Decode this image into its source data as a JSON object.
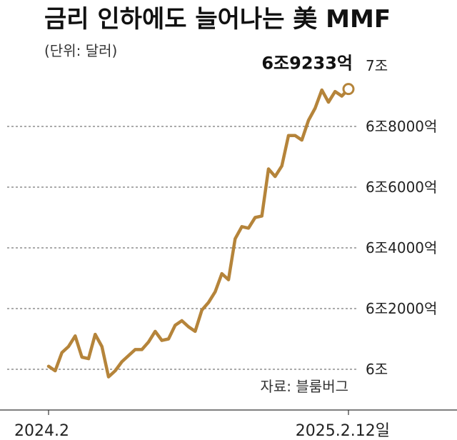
{
  "chart_data": {
    "type": "line",
    "title": "금리 인하에도 늘어나는 美 MMF",
    "unit": "(단위: 달러)",
    "source": "자료: 블룸버그",
    "peak_label": "6조9233억",
    "x_tick_labels": [
      "2024.2",
      "2025.2.12일"
    ],
    "y_tick_labels": [
      "6조",
      "6조2000억",
      "6조4000억",
      "6조6000억",
      "6조8000억",
      "7조"
    ],
    "y_ticks": [
      60000,
      62000,
      64000,
      66000,
      68000,
      70000
    ],
    "ylim": [
      60000,
      70000
    ],
    "y_unit_note": "억 달러",
    "grid": "horizontal-dashed",
    "colors": {
      "line": "#b5843a",
      "grid": "#555555",
      "axis": "#333333"
    },
    "series": [
      {
        "values": [
          60100,
          59950,
          60550,
          60750,
          61100,
          60400,
          60350,
          61150,
          60750,
          59750,
          59950,
          60250,
          60450,
          60650,
          60650,
          60900,
          61250,
          60950,
          61000,
          61450,
          61600,
          61400,
          61250,
          61950,
          62200,
          62550,
          63150,
          62950,
          64300,
          64700,
          64650,
          65000,
          65050,
          66600,
          66350,
          66700,
          67700,
          67700,
          67550,
          68200,
          68600,
          69200,
          68800,
          69150,
          69000,
          69233
        ]
      }
    ]
  }
}
